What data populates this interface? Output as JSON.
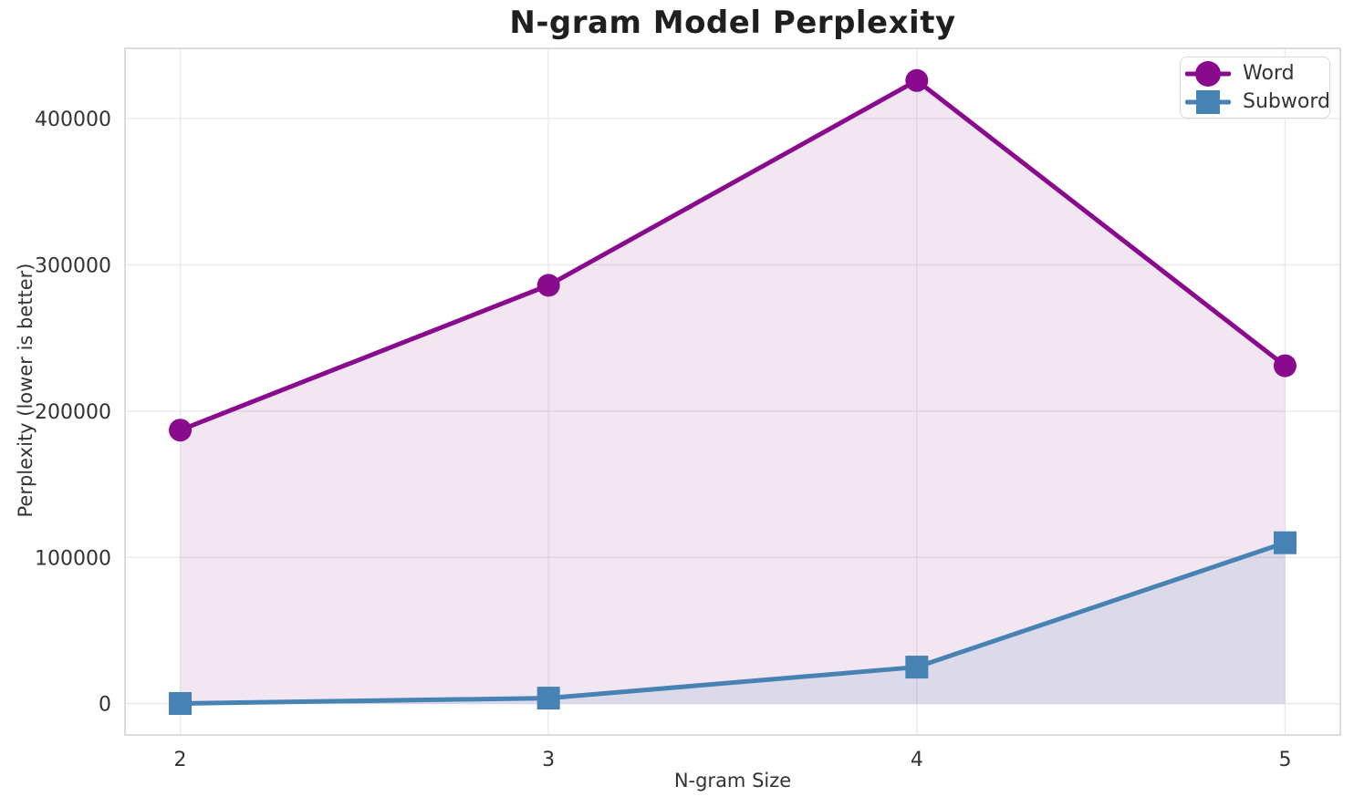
{
  "chart_data": {
    "type": "line",
    "title": "N-gram Model Perplexity",
    "xlabel": "N-gram Size",
    "ylabel": "Perplexity (lower is better)",
    "x": [
      2,
      3,
      4,
      5
    ],
    "series": [
      {
        "name": "Word",
        "marker": "circle",
        "color": "#8a0a8e",
        "fill_alpha": 0.1,
        "values": [
          187000,
          286000,
          426000,
          231000
        ]
      },
      {
        "name": "Subword",
        "marker": "square",
        "color": "#4682b4",
        "fill_alpha": 0.13,
        "values": [
          100,
          3800,
          25000,
          110000
        ]
      }
    ],
    "area_fill": true,
    "area_baseline": 0,
    "xticks": {
      "values": [
        2,
        3,
        4,
        5
      ],
      "labels": [
        "2",
        "3",
        "4",
        "5"
      ]
    },
    "yticks": {
      "values": [
        0,
        100000,
        200000,
        300000,
        400000
      ],
      "labels": [
        "0",
        "100000",
        "200000",
        "300000",
        "400000"
      ]
    },
    "xlim": [
      1.85,
      5.15
    ],
    "ylim": [
      -21400,
      448000
    ],
    "grid": true,
    "legend_position": "upper right",
    "style": {
      "grid_color": "#e9e9e9",
      "spine_color": "#d4d4d4",
      "line_width": 5,
      "marker_size": 25
    }
  }
}
